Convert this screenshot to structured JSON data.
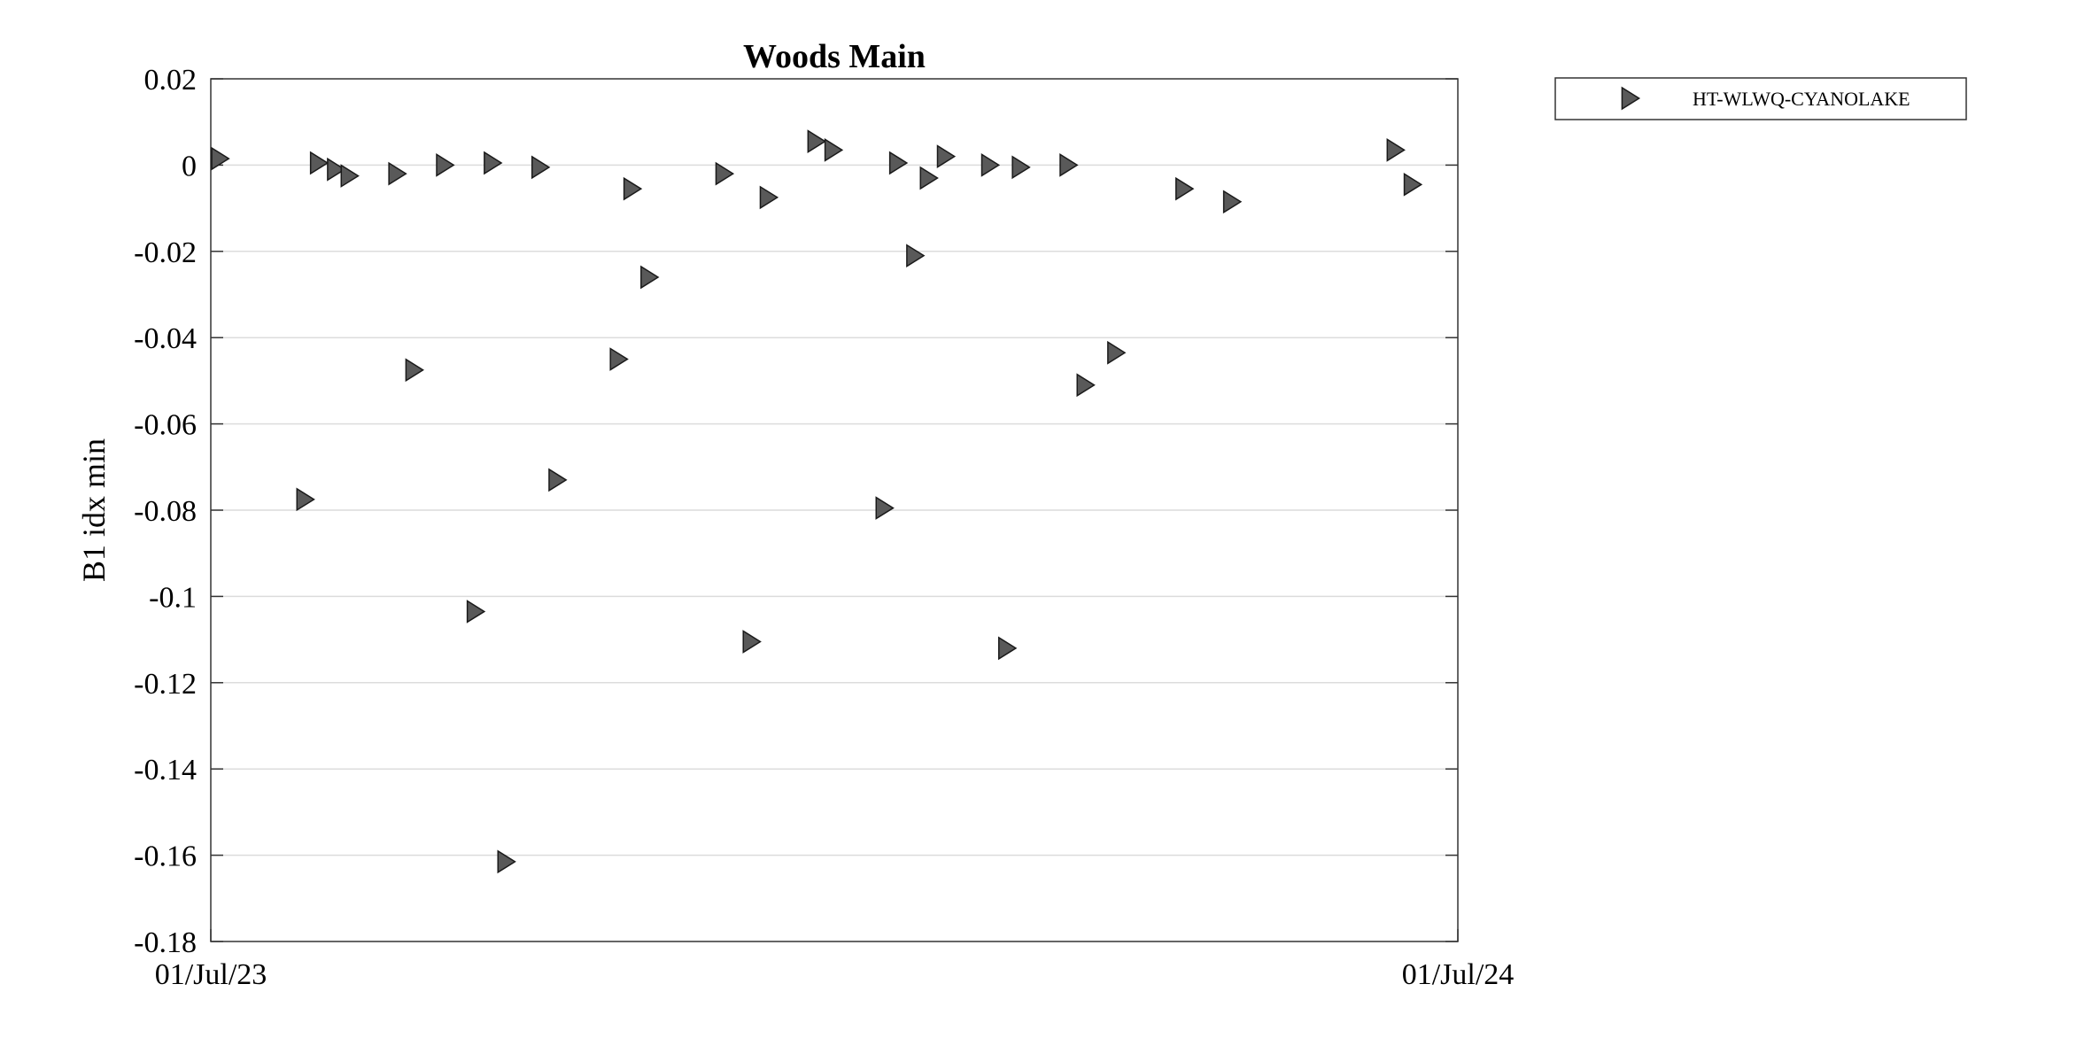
{
  "chart_data": {
    "type": "scatter",
    "title": "Woods Main",
    "xlabel": "",
    "ylabel": "B1 idx min",
    "x_axis_type": "date",
    "xlim": [
      "2023-07-01",
      "2024-07-01"
    ],
    "x_tick_labels": [
      "01/Jul/23",
      "01/Jul/24"
    ],
    "ylim": [
      -0.18,
      0.02
    ],
    "y_ticks": [
      0.02,
      0,
      -0.02,
      -0.04,
      -0.06,
      -0.08,
      -0.1,
      -0.12,
      -0.14,
      -0.16,
      -0.18
    ],
    "y_tick_labels": [
      "0.02",
      "0",
      "-0.02",
      "-0.04",
      "-0.06",
      "-0.08",
      "-0.1",
      "-0.12",
      "-0.14",
      "-0.16",
      "-0.18"
    ],
    "grid": "horizontal",
    "legend_position": "outside-top-right",
    "marker": "triangle-right",
    "marker_color": "#595959",
    "marker_edge_color": "#1a1a1a",
    "series": [
      {
        "name": "HT-WLWQ-CYANOLAKE",
        "points": [
          {
            "x": "2023-07-03",
            "y": 0.0015
          },
          {
            "x": "2023-07-28",
            "y": -0.0775
          },
          {
            "x": "2023-08-01",
            "y": 0.0005
          },
          {
            "x": "2023-08-06",
            "y": -0.001
          },
          {
            "x": "2023-08-10",
            "y": -0.0025
          },
          {
            "x": "2023-08-24",
            "y": -0.002
          },
          {
            "x": "2023-08-29",
            "y": -0.0475
          },
          {
            "x": "2023-09-07",
            "y": 0.0
          },
          {
            "x": "2023-09-16",
            "y": -0.1035
          },
          {
            "x": "2023-09-21",
            "y": 0.0005
          },
          {
            "x": "2023-09-25",
            "y": -0.1615
          },
          {
            "x": "2023-10-05",
            "y": -0.0005
          },
          {
            "x": "2023-10-10",
            "y": -0.073
          },
          {
            "x": "2023-10-28",
            "y": -0.045
          },
          {
            "x": "2023-11-01",
            "y": -0.0055
          },
          {
            "x": "2023-11-06",
            "y": -0.026
          },
          {
            "x": "2023-11-28",
            "y": -0.002
          },
          {
            "x": "2023-12-06",
            "y": -0.1105
          },
          {
            "x": "2023-12-11",
            "y": -0.0075
          },
          {
            "x": "2023-12-25",
            "y": 0.0055
          },
          {
            "x": "2023-12-30",
            "y": 0.0035
          },
          {
            "x": "2024-01-14",
            "y": -0.0795
          },
          {
            "x": "2024-01-18",
            "y": 0.0005
          },
          {
            "x": "2024-01-23",
            "y": -0.021
          },
          {
            "x": "2024-01-27",
            "y": -0.003
          },
          {
            "x": "2024-02-01",
            "y": 0.002
          },
          {
            "x": "2024-02-14",
            "y": 0.0
          },
          {
            "x": "2024-02-19",
            "y": -0.112
          },
          {
            "x": "2024-02-23",
            "y": -0.0005
          },
          {
            "x": "2024-03-08",
            "y": 0.0
          },
          {
            "x": "2024-03-13",
            "y": -0.051
          },
          {
            "x": "2024-03-22",
            "y": -0.0435
          },
          {
            "x": "2024-04-11",
            "y": -0.0055
          },
          {
            "x": "2024-04-25",
            "y": -0.0085
          },
          {
            "x": "2024-06-12",
            "y": 0.0035
          },
          {
            "x": "2024-06-17",
            "y": -0.0045
          }
        ]
      }
    ]
  }
}
